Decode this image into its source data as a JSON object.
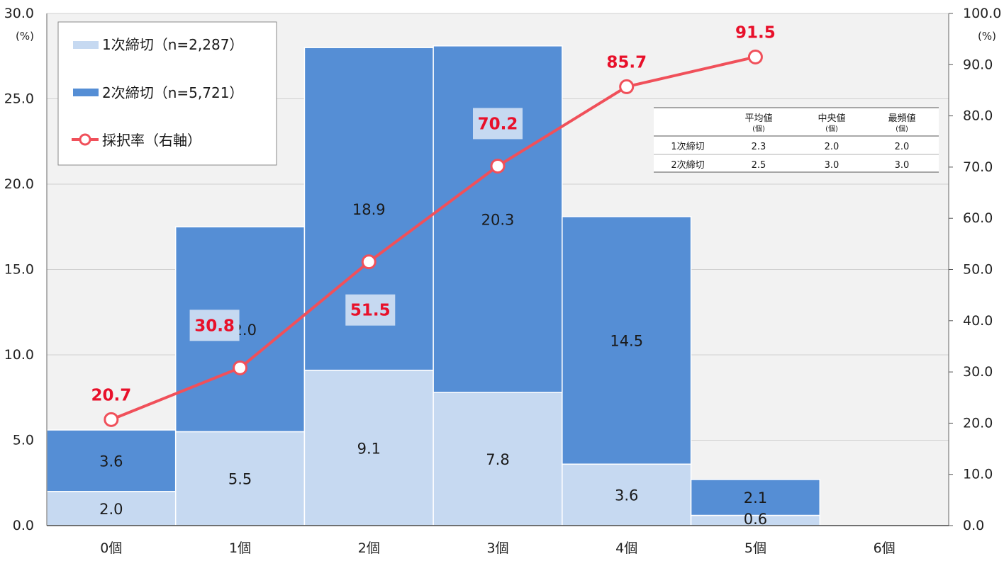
{
  "chart_data": {
    "type": "bar",
    "stacked": true,
    "categories": [
      "0個",
      "1個",
      "2個",
      "3個",
      "4個",
      "5個",
      "6個"
    ],
    "series": [
      {
        "name": "1次締切（n=2,287）",
        "values": [
          2.0,
          5.5,
          9.1,
          7.8,
          3.6,
          0.6,
          null
        ],
        "color": "#c6d9f1"
      },
      {
        "name": "2次締切（n=5,721）",
        "values": [
          3.6,
          12.0,
          18.9,
          20.3,
          14.5,
          2.1,
          null
        ],
        "color": "#558ed5"
      }
    ],
    "rate_series": {
      "name": "採択率（右軸）",
      "values": [
        20.7,
        30.8,
        51.5,
        70.2,
        85.7,
        91.5,
        null
      ],
      "color": "#f0505a"
    },
    "y_left": {
      "unit": "(%)",
      "ylim": [
        0,
        30
      ],
      "ticks": [
        "0.0",
        "5.0",
        "10.0",
        "15.0",
        "20.0",
        "25.0",
        "30.0"
      ]
    },
    "y_right": {
      "unit": "(%)",
      "ylim": [
        0,
        100
      ],
      "ticks": [
        "0.0",
        "10.0",
        "20.0",
        "30.0",
        "40.0",
        "50.0",
        "60.0",
        "70.0",
        "80.0",
        "90.0",
        "100.0"
      ]
    },
    "grid": true,
    "legend_position": "top-left",
    "stats_table": {
      "headers": [
        {
          "label": "平均値",
          "sub": "(個)"
        },
        {
          "label": "中央値",
          "sub": "(個)"
        },
        {
          "label": "最頻値",
          "sub": "(個)"
        }
      ],
      "rows": [
        {
          "label": "1次締切",
          "values": [
            "2.3",
            "2.0",
            "2.0"
          ]
        },
        {
          "label": "2次締切",
          "values": [
            "2.5",
            "3.0",
            "3.0"
          ]
        }
      ]
    }
  }
}
